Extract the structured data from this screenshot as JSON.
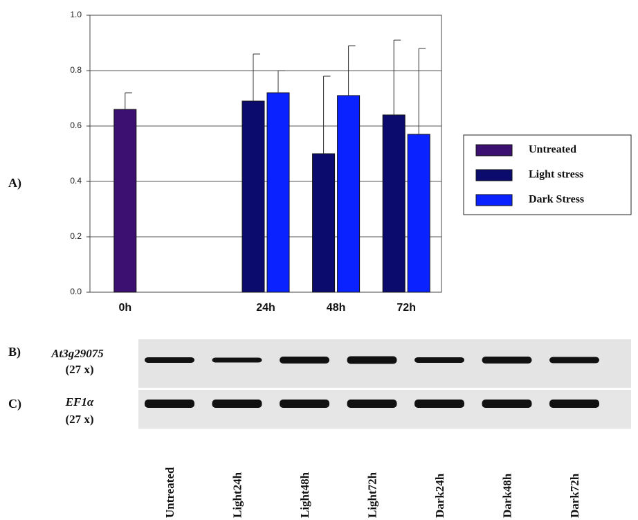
{
  "chart_data": {
    "type": "bar",
    "categories": [
      "0h",
      null,
      "24h",
      "48h",
      "72h"
    ],
    "series": [
      {
        "name": "Untreated",
        "color": "#3c1070",
        "values": [
          0.66,
          null,
          null,
          null,
          null
        ],
        "errors": [
          0.06,
          null,
          null,
          null,
          null
        ]
      },
      {
        "name": "Light stress",
        "color": "#0b0b6e",
        "values": [
          null,
          null,
          0.69,
          0.5,
          0.64
        ],
        "errors": [
          null,
          null,
          0.17,
          0.28,
          0.27
        ]
      },
      {
        "name": "Dark Stress",
        "color": "#0a22ff",
        "values": [
          null,
          null,
          0.72,
          0.71,
          0.57
        ],
        "errors": [
          null,
          null,
          0.08,
          0.18,
          0.31
        ]
      }
    ],
    "ylim": [
      0,
      1
    ],
    "yticks": [
      {
        "value": 0,
        "label": "0.0"
      },
      0.2,
      0.4,
      0.6,
      0.8,
      {
        "value": 1,
        "label": "1.0"
      }
    ],
    "grid": true
  },
  "panels": [
    "A)",
    "B)",
    "C)"
  ],
  "gel": {
    "rows": [
      {
        "label": "At3g29075",
        "cycles": "(27 x)"
      },
      {
        "label": "EF1α",
        "cycles": "(27 x)"
      }
    ],
    "lanes": [
      "Untreated",
      "Light24h",
      "Light48h",
      "Light72h",
      "Dark24h",
      "Dark48h",
      "Dark72h"
    ]
  }
}
